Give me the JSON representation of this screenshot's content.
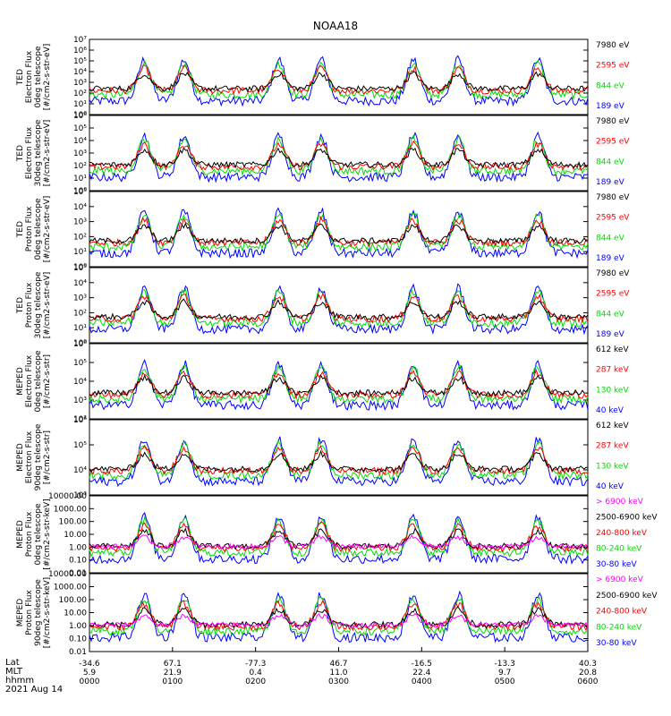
{
  "title": "NOAA18",
  "chart_data": [
    {
      "type": "line",
      "ylabel": [
        "TED",
        "Electron Flux",
        "0deg telescope",
        "[#/cm2-s-str-eV]"
      ],
      "scale": "log",
      "yticks": [
        "10⁰",
        "10¹",
        "10²",
        "10³",
        "10⁴",
        "10⁵",
        "10⁶",
        "10⁷"
      ],
      "ylim": [
        1,
        10000000
      ],
      "legend": [
        {
          "label": "7980 eV",
          "color": "#000000"
        },
        {
          "label": "2595 eV",
          "color": "#ff0000"
        },
        {
          "label": "844 eV",
          "color": "#00dd00"
        },
        {
          "label": "189 eV",
          "color": "#0000ff"
        }
      ]
    },
    {
      "type": "line",
      "ylabel": [
        "TED",
        "Electron Flux",
        "30deg telescope",
        "[#/cm2-s-str-eV]"
      ],
      "scale": "log",
      "yticks": [
        "10⁰",
        "10¹",
        "10²",
        "10³",
        "10⁴",
        "10⁵",
        "10⁶"
      ],
      "ylim": [
        1,
        1000000
      ],
      "legend": [
        {
          "label": "7980 eV",
          "color": "#000000"
        },
        {
          "label": "2595 eV",
          "color": "#ff0000"
        },
        {
          "label": "844 eV",
          "color": "#00dd00"
        },
        {
          "label": "189 eV",
          "color": "#0000ff"
        }
      ]
    },
    {
      "type": "line",
      "ylabel": [
        "TED",
        "Proton Flux",
        "0deg telescope",
        "[#/cm2-s-str-eV]"
      ],
      "scale": "log",
      "yticks": [
        "10⁰",
        "10¹",
        "10²",
        "10³",
        "10⁴",
        "10⁵"
      ],
      "ylim": [
        1,
        100000
      ],
      "legend": [
        {
          "label": "7980 eV",
          "color": "#000000"
        },
        {
          "label": "2595 eV",
          "color": "#ff0000"
        },
        {
          "label": "844 eV",
          "color": "#00dd00"
        },
        {
          "label": "189 eV",
          "color": "#0000ff"
        }
      ]
    },
    {
      "type": "line",
      "ylabel": [
        "TED",
        "Proton Flux",
        "30deg telescope",
        "[#/cm2-s-str-eV]"
      ],
      "scale": "log",
      "yticks": [
        "10⁰",
        "10¹",
        "10²",
        "10³",
        "10⁴",
        "10⁵"
      ],
      "ylim": [
        1,
        100000
      ],
      "legend": [
        {
          "label": "7980 eV",
          "color": "#000000"
        },
        {
          "label": "2595 eV",
          "color": "#ff0000"
        },
        {
          "label": "844 eV",
          "color": "#00dd00"
        },
        {
          "label": "189 eV",
          "color": "#0000ff"
        }
      ]
    },
    {
      "type": "line",
      "ylabel": [
        "MEPED",
        "Electron Flux",
        "0deg telescope",
        "[#/cm2-s-str]"
      ],
      "scale": "log",
      "yticks": [
        "10²",
        "10³",
        "10⁴",
        "10⁵",
        "10⁶"
      ],
      "ylim": [
        100,
        1000000
      ],
      "legend": [
        {
          "label": "612 keV",
          "color": "#000000"
        },
        {
          "label": "287 keV",
          "color": "#ff0000"
        },
        {
          "label": "130 keV",
          "color": "#00dd00"
        },
        {
          "label": "40 keV",
          "color": "#0000ff"
        }
      ]
    },
    {
      "type": "line",
      "ylabel": [
        "MEPED",
        "Electron Flux",
        "90deg telescope",
        "[#/cm2-s-str]"
      ],
      "scale": "log",
      "yticks": [
        "10³",
        "10⁴",
        "10⁵",
        "10⁶"
      ],
      "ylim": [
        1000,
        1000000
      ],
      "legend": [
        {
          "label": "612 keV",
          "color": "#000000"
        },
        {
          "label": "287 keV",
          "color": "#ff0000"
        },
        {
          "label": "130 keV",
          "color": "#00dd00"
        },
        {
          "label": "40 keV",
          "color": "#0000ff"
        }
      ]
    },
    {
      "type": "line",
      "ylabel": [
        "MEPED",
        "Proton Flux",
        "0deg telescope",
        "[#/cm2-s-str-keV]"
      ],
      "scale": "log",
      "yticks": [
        "0.01",
        "0.10",
        "1.00",
        "10.00",
        "100.00",
        "1000.00",
        "10000.00"
      ],
      "ylim": [
        0.01,
        10000
      ],
      "legend": [
        {
          "label": "> 6900 keV",
          "color": "#ff00ff"
        },
        {
          "label": "2500-6900 keV",
          "color": "#000000"
        },
        {
          "label": "240-800 keV",
          "color": "#ff0000"
        },
        {
          "label": "80-240 keV",
          "color": "#00dd00"
        },
        {
          "label": "30-80 keV",
          "color": "#0000ff"
        }
      ]
    },
    {
      "type": "line",
      "ylabel": [
        "MEPED",
        "Proton Flux",
        "90deg telescope",
        "[#/cm2-s-str-keV]"
      ],
      "scale": "log",
      "yticks": [
        "0.01",
        "0.10",
        "1.00",
        "10.00",
        "100.00",
        "1000.00",
        "10000.00"
      ],
      "ylim": [
        0.01,
        10000
      ],
      "legend": [
        {
          "label": "> 6900 keV",
          "color": "#ff00ff"
        },
        {
          "label": "2500-6900 keV",
          "color": "#000000"
        },
        {
          "label": "240-800 keV",
          "color": "#ff0000"
        },
        {
          "label": "80-240 keV",
          "color": "#00dd00"
        },
        {
          "label": "30-80 keV",
          "color": "#0000ff"
        }
      ]
    }
  ],
  "xaxis": {
    "row_labels": [
      "Lat",
      "MLT",
      "hhmm",
      "2021 Aug 14"
    ],
    "ticks": [
      {
        "lat": "-34.6",
        "mlt": "5.9",
        "hhmm": "0000"
      },
      {
        "lat": "67.1",
        "mlt": "21.9",
        "hhmm": "0100"
      },
      {
        "lat": "-77.3",
        "mlt": "0.4",
        "hhmm": "0200"
      },
      {
        "lat": "46.7",
        "mlt": "11.0",
        "hhmm": "0300"
      },
      {
        "lat": "-16.5",
        "mlt": "22.4",
        "hhmm": "0400"
      },
      {
        "lat": "-13.3",
        "mlt": "9.7",
        "hhmm": "0500"
      },
      {
        "lat": "40.3",
        "mlt": "20.8",
        "hhmm": "0600"
      }
    ]
  }
}
